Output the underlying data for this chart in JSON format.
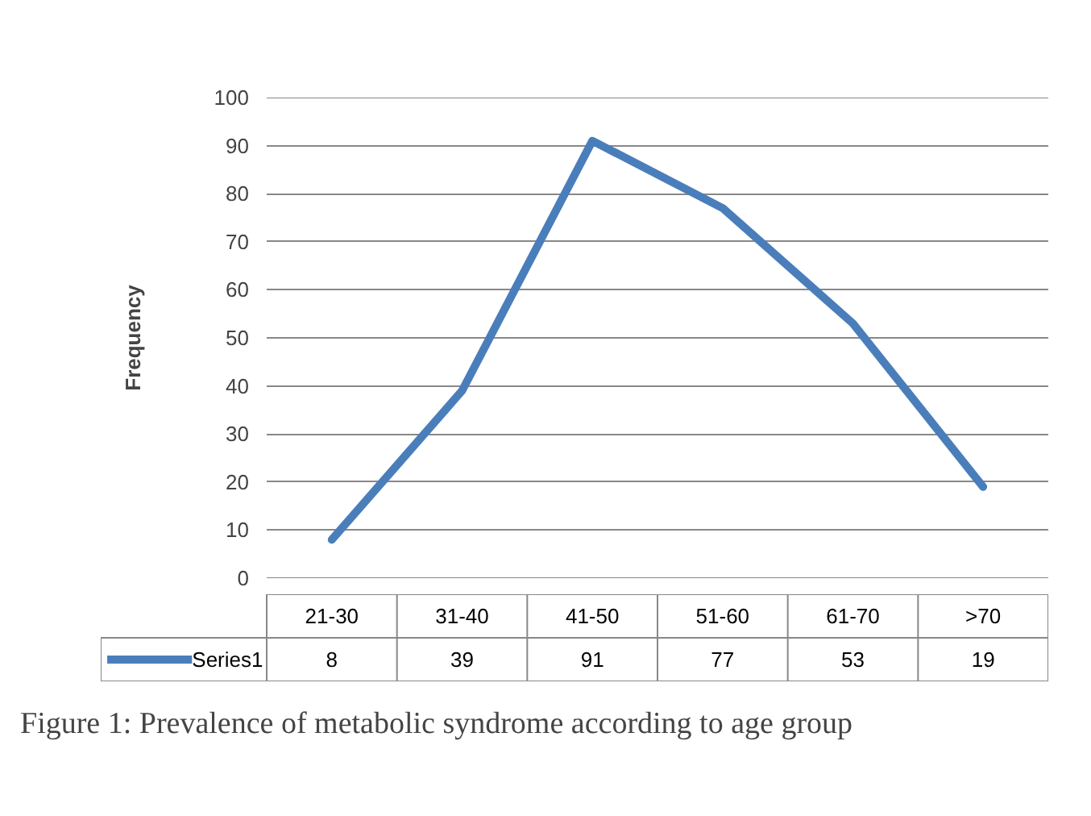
{
  "chart_data": {
    "type": "line",
    "ylabel": "Frequency",
    "categories": [
      "21-30",
      "31-40",
      "41-50",
      "51-60",
      "61-70",
      ">70"
    ],
    "series": [
      {
        "name": "Series1",
        "color": "#4a7ebb",
        "values": [
          8,
          39,
          91,
          77,
          53,
          19
        ]
      }
    ],
    "ylim": [
      0,
      100
    ],
    "yticks": [
      0,
      10,
      20,
      30,
      40,
      50,
      60,
      70,
      80,
      90,
      100
    ],
    "grid": "y",
    "data_labels": true,
    "annotations": [
      "Figure 1: Prevalence of metabolic syndrome according to age group"
    ]
  }
}
